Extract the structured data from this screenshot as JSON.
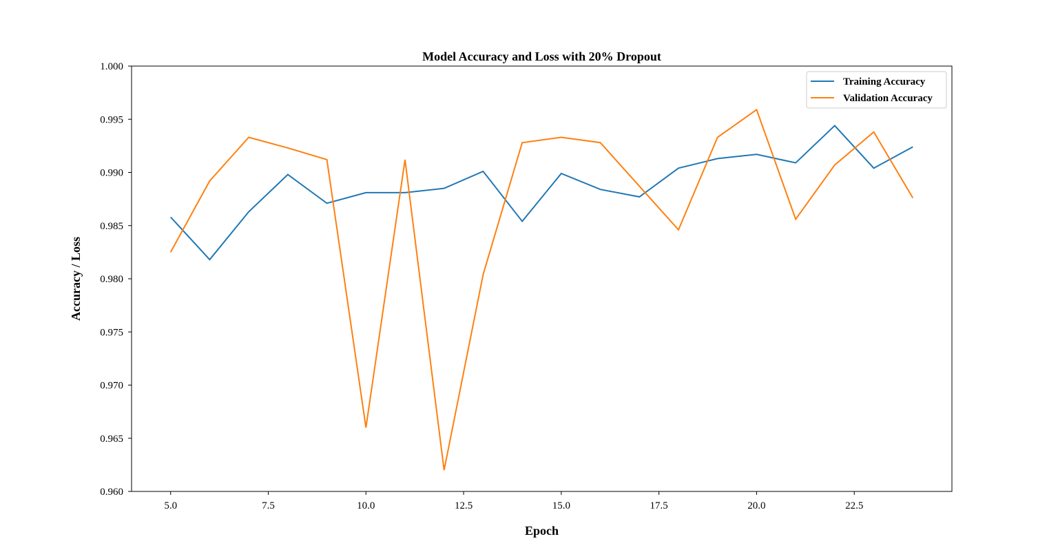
{
  "chart_data": {
    "type": "line",
    "title": "Model Accuracy and Loss with 20% Dropout",
    "xlabel": "Epoch",
    "ylabel": "Accuracy / Loss",
    "xlim": [
      4.0,
      25.0
    ],
    "ylim": [
      0.96,
      1.0
    ],
    "xticks": [
      "5.0",
      "7.5",
      "10.0",
      "12.5",
      "15.0",
      "17.5",
      "20.0",
      "22.5"
    ],
    "yticks": [
      "0.960",
      "0.965",
      "0.970",
      "0.975",
      "0.980",
      "0.985",
      "0.990",
      "0.995",
      "1.000"
    ],
    "x": [
      5,
      6,
      7,
      8,
      9,
      10,
      11,
      12,
      13,
      14,
      15,
      16,
      17,
      18,
      19,
      20,
      21,
      22,
      23,
      24
    ],
    "series": [
      {
        "name": "Training Accuracy",
        "color": "#1f77b4",
        "values": [
          0.9858,
          0.9818,
          0.9863,
          0.9898,
          0.9871,
          0.9881,
          0.9881,
          0.9885,
          0.9901,
          0.9854,
          0.9899,
          0.9884,
          0.9877,
          0.9904,
          0.9913,
          0.9917,
          0.9909,
          0.9944,
          0.9904,
          0.9924
        ]
      },
      {
        "name": "Validation Accuracy",
        "color": "#ff7f0e",
        "values": [
          0.9825,
          0.9892,
          0.9933,
          0.9923,
          0.9912,
          0.966,
          0.9912,
          0.962,
          0.9804,
          0.9928,
          0.9933,
          0.9928,
          0.9887,
          0.9846,
          0.9933,
          0.9959,
          0.9856,
          0.9907,
          0.9938,
          0.9876
        ]
      }
    ],
    "legend": "top-right",
    "grid": false
  }
}
